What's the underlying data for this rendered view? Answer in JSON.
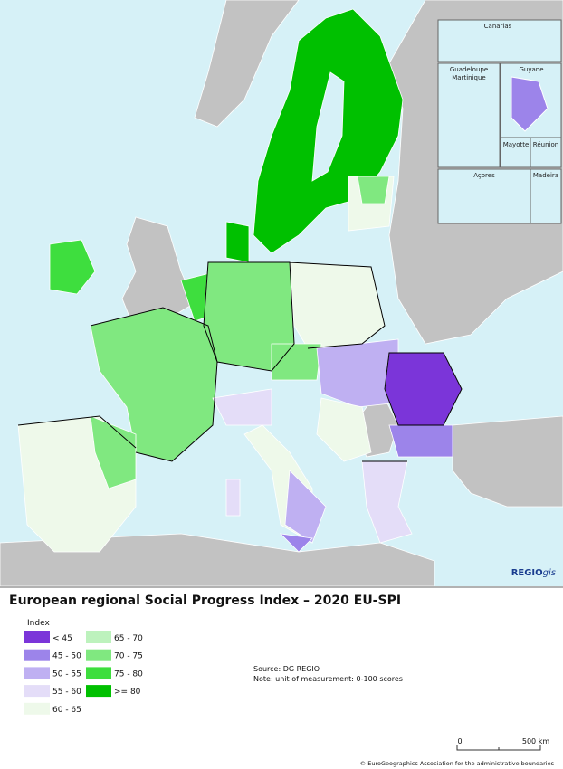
{
  "map": {
    "insets": [
      "Canarias",
      "Guadeloupe",
      "Martinique",
      "Guyane",
      "Mayotte",
      "Réunion",
      "Açores",
      "Madeira"
    ],
    "brand": {
      "bold": "REGIO",
      "italic": "gis"
    }
  },
  "title": "European regional Social Progress Index – 2020 EU-SPI",
  "legend": {
    "title": "Index",
    "items": [
      {
        "label": "< 45",
        "color": "#7b35d9"
      },
      {
        "label": "45 - 50",
        "color": "#9c84ea"
      },
      {
        "label": "50 - 55",
        "color": "#bfb0f2"
      },
      {
        "label": "55 - 60",
        "color": "#e4ddf8"
      },
      {
        "label": "60 - 65",
        "color": "#eef9ea"
      },
      {
        "label": "65 - 70",
        "color": "#bdf2bd"
      },
      {
        "label": "70 - 75",
        "color": "#80e880"
      },
      {
        "label": "75 - 80",
        "color": "#3ede3e"
      },
      {
        "label": ">= 80",
        "color": "#00c000"
      }
    ]
  },
  "source": "Source: DG REGIO",
  "note": "Note: unit of measurement: 0-100 scores",
  "scale": {
    "start": "0",
    "end": "500 km"
  },
  "copyright": "© EuroGeographics Association for the administrative boundaries"
}
